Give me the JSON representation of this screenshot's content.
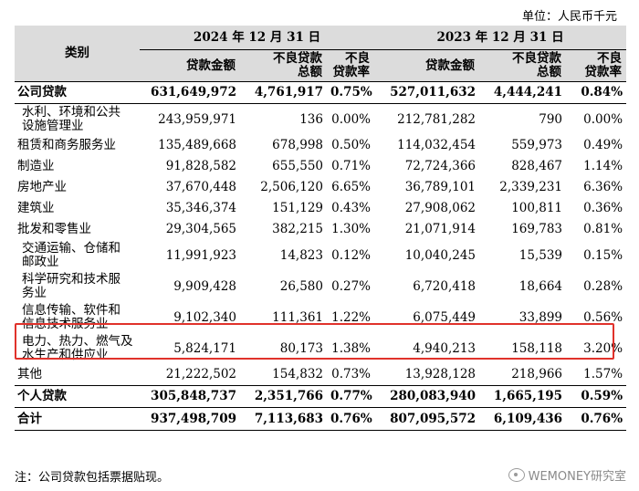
{
  "unit": "单位：人民币千元",
  "header": {
    "category": "类别",
    "group_2024": "2024 年 12 月 31 日",
    "group_2023": "2023 年 12 月 31 日",
    "col_loan": "贷款金额",
    "col_npl_1": "不良贷款",
    "col_npl_2": "总额",
    "col_ratio_1": "不良",
    "col_ratio_2": "贷款率"
  },
  "rows": [
    {
      "name": "公司贷款",
      "a": "631,649,972",
      "b": "4,761,917",
      "c": "0.75%",
      "d": "527,011,632",
      "e": "4,444,241",
      "f": "0.84%"
    },
    {
      "name1": "水利、环境和公共",
      "name2": "设施管理业",
      "a": "243,959,971",
      "b": "136",
      "c": "0.00%",
      "d": "212,781,282",
      "e": "790",
      "f": "0.00%"
    },
    {
      "name": "租赁和商务服务业",
      "a": "135,489,668",
      "b": "678,998",
      "c": "0.50%",
      "d": "114,032,454",
      "e": "559,973",
      "f": "0.49%"
    },
    {
      "name": "制造业",
      "a": "91,828,582",
      "b": "655,550",
      "c": "0.71%",
      "d": "72,724,366",
      "e": "828,467",
      "f": "1.14%"
    },
    {
      "name": "房地产业",
      "a": "37,670,448",
      "b": "2,506,120",
      "c": "6.65%",
      "d": "36,789,101",
      "e": "2,339,231",
      "f": "6.36%"
    },
    {
      "name": "建筑业",
      "a": "35,346,374",
      "b": "151,129",
      "c": "0.43%",
      "d": "27,908,062",
      "e": "100,811",
      "f": "0.36%"
    },
    {
      "name": "批发和零售业",
      "a": "29,304,565",
      "b": "382,215",
      "c": "1.30%",
      "d": "21,071,914",
      "e": "169,783",
      "f": "0.81%"
    },
    {
      "name1": "交通运输、仓储和",
      "name2": "邮政业",
      "a": "11,991,923",
      "b": "14,823",
      "c": "0.12%",
      "d": "10,040,245",
      "e": "15,539",
      "f": "0.15%"
    },
    {
      "name1": "科学研究和技术服",
      "name2": "务业",
      "a": "9,909,428",
      "b": "26,580",
      "c": "0.27%",
      "d": "6,720,418",
      "e": "18,664",
      "f": "0.28%"
    },
    {
      "name1": "信息传输、软件和",
      "name2": "信息技术服务业",
      "a": "9,102,340",
      "b": "111,361",
      "c": "1.22%",
      "d": "6,075,449",
      "e": "33,899",
      "f": "0.56%"
    },
    {
      "name1": "电力、热力、燃气及",
      "name2": "水生产和供应业",
      "a": "5,824,171",
      "b": "80,173",
      "c": "1.38%",
      "d": "4,940,213",
      "e": "158,118",
      "f": "3.20%"
    },
    {
      "name": "其他",
      "a": "21,222,502",
      "b": "154,832",
      "c": "0.73%",
      "d": "13,928,128",
      "e": "218,966",
      "f": "1.57%"
    },
    {
      "name": "个人贷款",
      "a": "305,848,737",
      "b": "2,351,766",
      "c": "0.77%",
      "d": "280,083,940",
      "e": "1,665,195",
      "f": "0.59%"
    },
    {
      "name": "合计",
      "a": "937,498,709",
      "b": "7,113,683",
      "c": "0.76%",
      "d": "807,095,572",
      "e": "6,109,436",
      "f": "0.76%"
    }
  ],
  "note": "注：公司贷款包括票据贴现。",
  "watermark": "WEMONEY研究室",
  "highlight_color": "#e0322b"
}
